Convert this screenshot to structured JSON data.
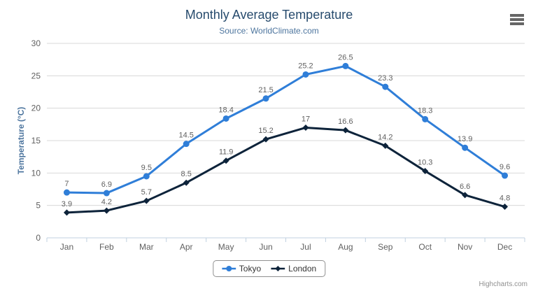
{
  "header": {
    "title": "Monthly Average Temperature",
    "subtitle": "Source: WorldClimate.com"
  },
  "credits": "Highcharts.com",
  "colors": {
    "title": "#274b6d",
    "subtitle": "#4d759e",
    "axis_title": "#4d759e",
    "axis_labels": "#606060",
    "data_labels": "#606060",
    "gridline": "#d8d8d8",
    "axis_line": "#c0d0e0",
    "tick": "#c0d0e0",
    "legend_border": "#909090",
    "legend_text": "#333333",
    "hamburger": "#666666",
    "tokyo": "#2f7ed8",
    "london": "#0d233a"
  },
  "chart_data": {
    "type": "line",
    "title": "Monthly Average Temperature",
    "subtitle": "Source: WorldClimate.com",
    "categories": [
      "Jan",
      "Feb",
      "Mar",
      "Apr",
      "May",
      "Jun",
      "Jul",
      "Aug",
      "Sep",
      "Oct",
      "Nov",
      "Dec"
    ],
    "series": [
      {
        "name": "Tokyo",
        "color": "#2f7ed8",
        "marker": "circle",
        "values": [
          7,
          6.9,
          9.5,
          14.5,
          18.4,
          21.5,
          25.2,
          26.5,
          23.3,
          18.3,
          13.9,
          9.6
        ]
      },
      {
        "name": "London",
        "color": "#0d233a",
        "marker": "diamond",
        "values": [
          3.9,
          4.2,
          5.7,
          8.5,
          11.9,
          15.2,
          17,
          16.6,
          14.2,
          10.3,
          6.6,
          4.8
        ]
      }
    ],
    "xlabel": "",
    "ylabel": "Temperature (°C)",
    "ylim": [
      0,
      30
    ],
    "ytick_step": 5,
    "grid": true,
    "data_labels": true,
    "legend_position": "bottom"
  }
}
